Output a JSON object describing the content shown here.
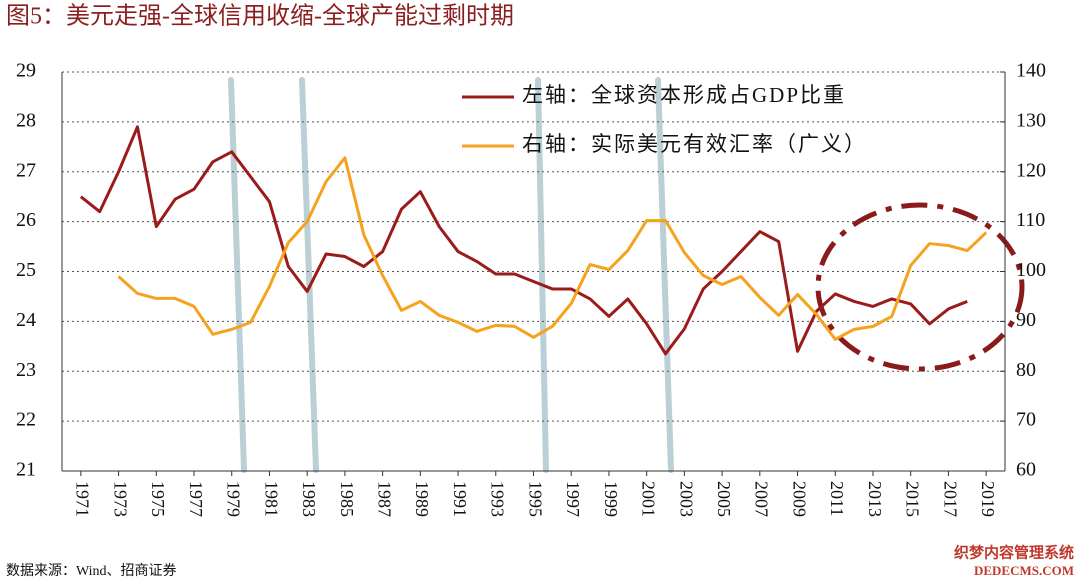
{
  "chart_data": {
    "type": "line",
    "title": "图5：美元走强-全球信用收缩-全球产能过剩时期",
    "source": "数据来源：Wind、招商证券",
    "watermark": [
      "织梦内容管理系统",
      "DEDECMS.COM"
    ],
    "x": [
      1971,
      1972,
      1973,
      1974,
      1975,
      1976,
      1977,
      1978,
      1979,
      1980,
      1981,
      1982,
      1983,
      1984,
      1985,
      1986,
      1987,
      1988,
      1989,
      1990,
      1991,
      1992,
      1993,
      1994,
      1995,
      1996,
      1997,
      1998,
      1999,
      2000,
      2001,
      2002,
      2003,
      2004,
      2005,
      2006,
      2007,
      2008,
      2009,
      2010,
      2011,
      2012,
      2013,
      2014,
      2015,
      2016,
      2017,
      2018,
      2019
    ],
    "series": [
      {
        "name": "左轴：全球资本形成占GDP比重",
        "color": "#9b1b1b",
        "axis": "y",
        "values": [
          26.5,
          26.2,
          27.0,
          27.9,
          25.9,
          26.45,
          26.65,
          27.2,
          27.4,
          26.9,
          26.4,
          25.1,
          24.6,
          25.35,
          25.3,
          25.1,
          25.4,
          26.25,
          26.6,
          25.9,
          25.4,
          25.2,
          24.95,
          24.95,
          24.8,
          24.65,
          24.65,
          24.45,
          24.1,
          24.45,
          23.95,
          23.35,
          23.85,
          24.65,
          25.0,
          25.4,
          25.8,
          25.6,
          23.4,
          24.2,
          24.55,
          24.4,
          24.3,
          24.45,
          24.35,
          23.95,
          24.25,
          24.4,
          null
        ]
      },
      {
        "name": "右轴：实际美元有效汇率（广义）",
        "color": "#f5a21e",
        "axis": "y2",
        "values": [
          null,
          null,
          99,
          95.6,
          94.6,
          94.6,
          93,
          87.4,
          88.4,
          89.8,
          97,
          105.8,
          110,
          118,
          122.8,
          107.4,
          99.2,
          92.2,
          94,
          91.2,
          89.8,
          88,
          89.2,
          89,
          86.8,
          89,
          93.6,
          101.4,
          100.4,
          104.2,
          110.2,
          110.2,
          103.8,
          99.2,
          97.4,
          99,
          94.8,
          91.2,
          95.4,
          91.4,
          86.4,
          88.4,
          89,
          91,
          101.2,
          105.6,
          105.2,
          104.2,
          107.8
        ]
      }
    ],
    "xlim": [
      1970,
      2020
    ],
    "xticks": [
      1971,
      1973,
      1975,
      1977,
      1979,
      1981,
      1983,
      1985,
      1987,
      1989,
      1991,
      1993,
      1995,
      1997,
      1999,
      2001,
      2003,
      2005,
      2007,
      2009,
      2011,
      2013,
      2015,
      2017,
      2019
    ],
    "ylim": [
      21,
      29
    ],
    "yticks": [
      21,
      22,
      23,
      24,
      25,
      26,
      27,
      28,
      29
    ],
    "y2lim": [
      60,
      140
    ],
    "y2ticks": [
      60,
      70,
      80,
      90,
      100,
      110,
      120,
      130,
      140
    ],
    "grid": true
  }
}
